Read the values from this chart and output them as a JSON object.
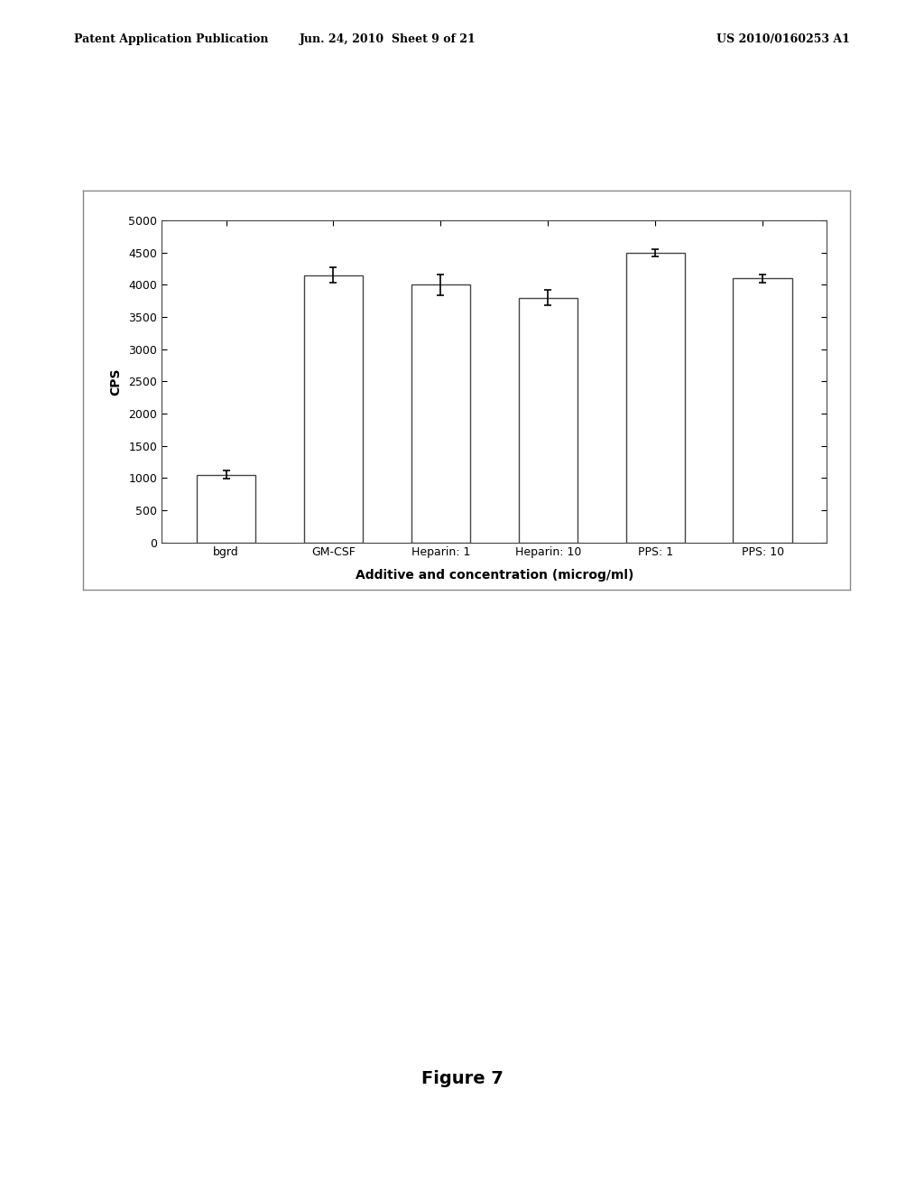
{
  "categories": [
    "bgrd",
    "GM-CSF",
    "Heparin: 1",
    "Heparin: 10",
    "PPS: 1",
    "PPS: 10"
  ],
  "values": [
    1050,
    4150,
    4000,
    3800,
    4500,
    4100
  ],
  "errors": [
    60,
    120,
    160,
    120,
    60,
    60
  ],
  "bar_color": "#ffffff",
  "bar_edgecolor": "#444444",
  "ylabel": "CPS",
  "xlabel": "Additive and concentration (microg/ml)",
  "ylim": [
    0,
    5000
  ],
  "yticks": [
    0,
    500,
    1000,
    1500,
    2000,
    2500,
    3000,
    3500,
    4000,
    4500,
    5000
  ],
  "figure_caption": "Figure 7",
  "header_left": "Patent Application Publication",
  "header_mid": "Jun. 24, 2010  Sheet 9 of 21",
  "header_right": "US 2010/0160253 A1",
  "background_color": "#ffffff",
  "chart_bg": "#ffffff",
  "bar_width": 0.55,
  "outer_box_color": "#888888"
}
